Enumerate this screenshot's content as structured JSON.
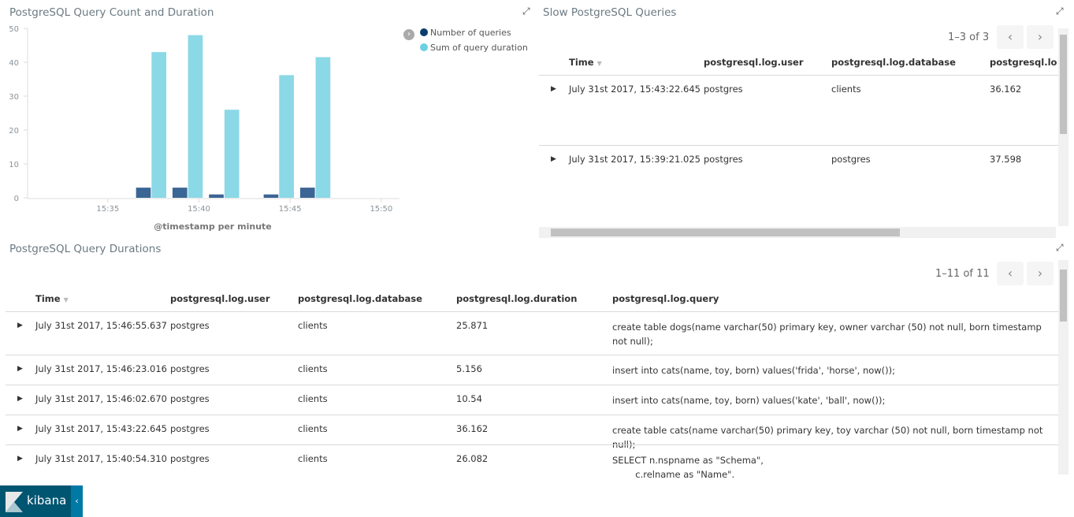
{
  "chart_panel": {
    "title": "PostgreSQL Query Count and Duration",
    "expand_icon": "expand-icon"
  },
  "chart_data": {
    "type": "bar",
    "title": "",
    "xlabel": "@timestamp per minute",
    "ylabel": "",
    "ylim": [
      0,
      50
    ],
    "yticks": [
      "0",
      "10",
      "20",
      "30",
      "40",
      "50"
    ],
    "xticks": [
      "15:35",
      "15:40",
      "15:45",
      "15:50"
    ],
    "xlim": [
      "15:30.6",
      "15:51"
    ],
    "grid": false,
    "legend_position": "top-right",
    "categories": [
      "15:37",
      "15:39",
      "15:41",
      "15:44",
      "15:46"
    ],
    "series": [
      {
        "name": "Number of queries",
        "color": "#3b6594",
        "legend_color": "#0b3d6e",
        "values": [
          3,
          3,
          1,
          1,
          3
        ]
      },
      {
        "name": "Sum of query duration",
        "color": "#8bd8e6",
        "legend_color": "#6dcfe3",
        "values": [
          43,
          48,
          26,
          36.2,
          41.5
        ]
      }
    ]
  },
  "slow_panel": {
    "title": "Slow PostgreSQL Queries",
    "pager": "1–3 of 3",
    "columns": [
      "Time",
      "postgresql.log.user",
      "postgresql.log.database",
      "postgresql.log."
    ],
    "rows": [
      [
        "July 31st 2017, 15:43:22.645",
        "postgres",
        "clients",
        "36.162"
      ],
      [
        "July 31st 2017, 15:39:21.025",
        "postgres",
        "postgres",
        "37.598"
      ]
    ]
  },
  "dur_panel": {
    "title": "PostgreSQL Query Durations",
    "pager": "1–11 of 11",
    "columns": [
      "Time",
      "postgresql.log.user",
      "postgresql.log.database",
      "postgresql.log.duration",
      "postgresql.log.query"
    ],
    "rows": [
      [
        "July 31st 2017, 15:46:55.637",
        "postgres",
        "clients",
        "25.871",
        "create table dogs(name varchar(50) primary key, owner varchar (50) not null, born timestamp not null);"
      ],
      [
        "July 31st 2017, 15:46:23.016",
        "postgres",
        "clients",
        "5.156",
        "insert into cats(name, toy, born) values('frida', 'horse', now());"
      ],
      [
        "July 31st 2017, 15:46:02.670",
        "postgres",
        "clients",
        "10.54",
        "insert into cats(name, toy, born) values('kate', 'ball', now());"
      ],
      [
        "July 31st 2017, 15:43:22.645",
        "postgres",
        "clients",
        "36.162",
        "create table cats(name varchar(50) primary key, toy varchar (50) not null, born timestamp not null);"
      ],
      [
        "July 31st 2017, 15:40:54.310",
        "postgres",
        "clients",
        "26.082",
        "SELECT n.nspname as \"Schema\",\n        c.relname as \"Name\"."
      ]
    ]
  },
  "brand": {
    "name": "kibana"
  }
}
